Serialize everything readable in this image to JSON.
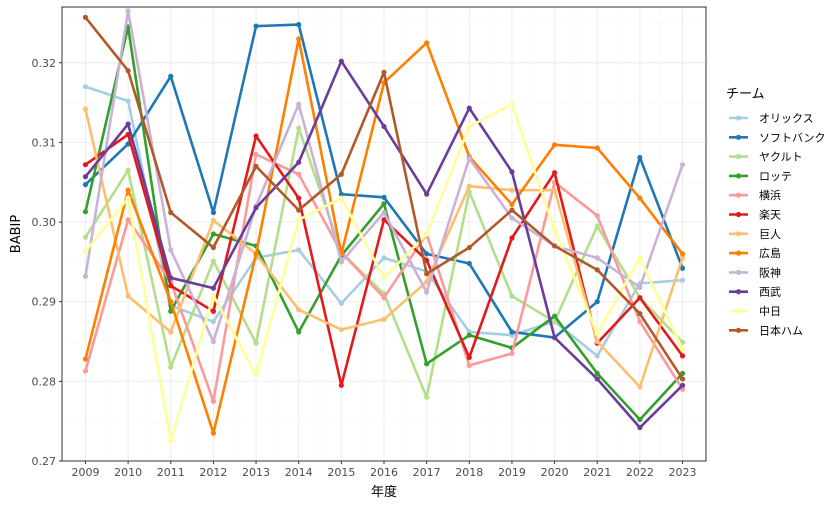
{
  "chart_data": {
    "type": "line",
    "title": "",
    "xlabel": "年度",
    "ylabel": "BABIP",
    "x": [
      2009,
      2010,
      2011,
      2012,
      2013,
      2014,
      2015,
      2016,
      2017,
      2018,
      2019,
      2020,
      2021,
      2022,
      2023
    ],
    "ylim": [
      0.27,
      0.327
    ],
    "yticks": [
      0.27,
      0.28,
      0.29,
      0.3,
      0.31,
      0.32
    ],
    "ytick_labels": [
      "0.27",
      "0.28",
      "0.29",
      "0.30",
      "0.31",
      "0.32"
    ],
    "grid": true,
    "legend": {
      "title": "チーム",
      "position": "right"
    },
    "series": [
      {
        "name": "オリックス",
        "color": "#a6cee3",
        "values": [
          0.317,
          0.3152,
          0.2895,
          0.2875,
          0.2955,
          0.2965,
          0.2898,
          0.2955,
          0.2938,
          0.2862,
          0.2858,
          0.2875,
          0.2832,
          0.2923,
          0.2927
        ]
      },
      {
        "name": "ソフトバンク",
        "color": "#1f78b4",
        "values": [
          0.3047,
          0.3098,
          0.3183,
          0.3012,
          0.3246,
          0.3248,
          0.3035,
          0.3031,
          0.296,
          0.2948,
          0.2862,
          0.2855,
          0.29,
          0.3081,
          0.2942
        ]
      },
      {
        "name": "ヤクルト",
        "color": "#b2df8a",
        "values": [
          0.2981,
          0.3065,
          0.2818,
          0.2951,
          0.2848,
          0.3118,
          0.2962,
          0.291,
          0.278,
          0.3038,
          0.2907,
          0.2875,
          0.2995,
          0.2905,
          0.2849
        ]
      },
      {
        "name": "ロッテ",
        "color": "#33a02c",
        "values": [
          0.3013,
          0.3245,
          0.2888,
          0.2985,
          0.297,
          0.2862,
          0.2958,
          0.3023,
          0.2822,
          0.2858,
          0.2842,
          0.2882,
          0.281,
          0.2752,
          0.281
        ]
      },
      {
        "name": "横浜",
        "color": "#fb9a99",
        "values": [
          0.2813,
          0.3003,
          0.2925,
          0.2775,
          0.3085,
          0.306,
          0.2962,
          0.2905,
          0.2985,
          0.282,
          0.2835,
          0.305,
          0.3008,
          0.2875,
          0.279
        ]
      },
      {
        "name": "楽天",
        "color": "#e31a1c",
        "values": [
          0.3072,
          0.311,
          0.292,
          0.2888,
          0.3108,
          0.303,
          0.2795,
          0.3003,
          0.2952,
          0.283,
          0.298,
          0.3062,
          0.2848,
          0.2905,
          0.2832
        ]
      },
      {
        "name": "巨人",
        "color": "#fdbf6f",
        "values": [
          0.3142,
          0.2907,
          0.2862,
          0.3002,
          0.296,
          0.289,
          0.2865,
          0.2878,
          0.2925,
          0.3045,
          0.304,
          0.304,
          0.285,
          0.2793,
          0.2955
        ]
      },
      {
        "name": "広島",
        "color": "#ff7f00",
        "values": [
          0.2828,
          0.304,
          0.29,
          0.2735,
          0.296,
          0.323,
          0.296,
          0.3175,
          0.3225,
          0.3082,
          0.3022,
          0.3097,
          0.3093,
          0.303,
          0.296
        ]
      },
      {
        "name": "阪神",
        "color": "#cab2d6",
        "values": [
          0.2932,
          0.3265,
          0.2965,
          0.285,
          0.302,
          0.3148,
          0.295,
          0.3012,
          0.2912,
          0.308,
          0.3005,
          0.297,
          0.2955,
          0.2918,
          0.3072
        ]
      },
      {
        "name": "西武",
        "color": "#6a3d9a",
        "values": [
          0.3057,
          0.3123,
          0.293,
          0.2917,
          0.3018,
          0.3075,
          0.3202,
          0.312,
          0.3035,
          0.3143,
          0.3063,
          0.2855,
          0.2803,
          0.2742,
          0.2795
        ]
      },
      {
        "name": "中日",
        "color": "#ffff99",
        "values": [
          0.2963,
          0.303,
          0.2725,
          0.2908,
          0.2808,
          0.3003,
          0.303,
          0.293,
          0.2985,
          0.312,
          0.3148,
          0.299,
          0.286,
          0.2955,
          0.284
        ]
      },
      {
        "name": "日本ハム",
        "color": "#b15928",
        "values": [
          0.3257,
          0.319,
          0.3012,
          0.2968,
          0.307,
          0.3015,
          0.306,
          0.3188,
          0.2935,
          0.2968,
          0.3015,
          0.297,
          0.294,
          0.2885,
          0.2803
        ]
      }
    ]
  }
}
